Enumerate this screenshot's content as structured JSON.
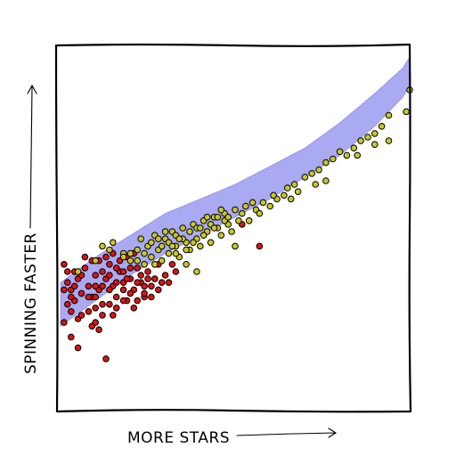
{
  "chart_data": {
    "type": "scatter",
    "style": "xkcd",
    "xlabel": "MORE STARS",
    "ylabel": "SPINNING FASTER",
    "xlim": [
      0,
      1
    ],
    "ylim": [
      0,
      1
    ],
    "ticks": "none",
    "grid": false,
    "legend": "none",
    "colors": {
      "red_series": "#d91414",
      "yellow_series": "#c8c628",
      "band": "#aaaaf2"
    },
    "band": {
      "x": [
        0.0,
        0.1,
        0.2,
        0.3,
        0.4,
        0.5,
        0.6,
        0.7,
        0.8,
        0.9,
        0.98,
        1.0
      ],
      "lower": [
        0.23,
        0.3,
        0.37,
        0.43,
        0.48,
        0.53,
        0.58,
        0.64,
        0.7,
        0.78,
        0.86,
        0.89
      ],
      "upper": [
        0.35,
        0.42,
        0.48,
        0.54,
        0.58,
        0.62,
        0.67,
        0.72,
        0.79,
        0.87,
        0.94,
        0.97
      ]
    },
    "series": [
      {
        "color": "#d91414",
        "points": [
          [
            0.01,
            0.4
          ],
          [
            0.02,
            0.35
          ],
          [
            0.03,
            0.33
          ],
          [
            0.02,
            0.29
          ],
          [
            0.04,
            0.38
          ],
          [
            0.05,
            0.36
          ],
          [
            0.06,
            0.32
          ],
          [
            0.04,
            0.3
          ],
          [
            0.07,
            0.39
          ],
          [
            0.08,
            0.34
          ],
          [
            0.09,
            0.31
          ],
          [
            0.1,
            0.37
          ],
          [
            0.11,
            0.33
          ],
          [
            0.12,
            0.29
          ],
          [
            0.13,
            0.36
          ],
          [
            0.14,
            0.4
          ],
          [
            0.15,
            0.34
          ],
          [
            0.16,
            0.31
          ],
          [
            0.17,
            0.38
          ],
          [
            0.18,
            0.35
          ],
          [
            0.19,
            0.3
          ],
          [
            0.2,
            0.36
          ],
          [
            0.21,
            0.33
          ],
          [
            0.22,
            0.39
          ],
          [
            0.23,
            0.35
          ],
          [
            0.24,
            0.31
          ],
          [
            0.25,
            0.38
          ],
          [
            0.26,
            0.34
          ],
          [
            0.27,
            0.36
          ],
          [
            0.28,
            0.4
          ],
          [
            0.29,
            0.35
          ],
          [
            0.3,
            0.37
          ],
          [
            0.03,
            0.27
          ],
          [
            0.05,
            0.25
          ],
          [
            0.01,
            0.24
          ],
          [
            0.08,
            0.27
          ],
          [
            0.1,
            0.28
          ],
          [
            0.06,
            0.26
          ],
          [
            0.12,
            0.26
          ],
          [
            0.14,
            0.29
          ],
          [
            0.16,
            0.28
          ],
          [
            0.18,
            0.3
          ],
          [
            0.2,
            0.32
          ],
          [
            0.22,
            0.3
          ],
          [
            0.24,
            0.34
          ],
          [
            0.07,
            0.42
          ],
          [
            0.09,
            0.41
          ],
          [
            0.11,
            0.41
          ],
          [
            0.13,
            0.42
          ],
          [
            0.15,
            0.43
          ],
          [
            0.17,
            0.41
          ],
          [
            0.19,
            0.42
          ],
          [
            0.21,
            0.43
          ],
          [
            0.1,
            0.34
          ],
          [
            0.12,
            0.34
          ],
          [
            0.14,
            0.33
          ],
          [
            0.16,
            0.35
          ],
          [
            0.18,
            0.33
          ],
          [
            0.2,
            0.39
          ],
          [
            0.22,
            0.35
          ],
          [
            0.02,
            0.38
          ],
          [
            0.04,
            0.34
          ],
          [
            0.06,
            0.37
          ],
          [
            0.08,
            0.31
          ],
          [
            0.1,
            0.31
          ],
          [
            0.12,
            0.38
          ],
          [
            0.14,
            0.37
          ],
          [
            0.16,
            0.39
          ],
          [
            0.18,
            0.38
          ],
          [
            0.26,
            0.31
          ],
          [
            0.28,
            0.33
          ],
          [
            0.31,
            0.35
          ],
          [
            0.33,
            0.38
          ],
          [
            0.03,
            0.2
          ],
          [
            0.09,
            0.23
          ],
          [
            0.11,
            0.22
          ],
          [
            0.1,
            0.24
          ],
          [
            0.05,
            0.17
          ],
          [
            0.13,
            0.14
          ],
          [
            0.15,
            0.26
          ],
          [
            0.21,
            0.28
          ],
          [
            0.24,
            0.32
          ],
          [
            0.03,
            0.31
          ],
          [
            0.01,
            0.33
          ],
          [
            0.32,
            0.4
          ],
          [
            0.52,
            0.51
          ],
          [
            0.57,
            0.45
          ],
          [
            0.23,
            0.37
          ],
          [
            0.25,
            0.36
          ],
          [
            0.19,
            0.36
          ]
        ]
      },
      {
        "color": "#c8c628",
        "points": [
          [
            0.05,
            0.38
          ],
          [
            0.12,
            0.45
          ],
          [
            0.15,
            0.46
          ],
          [
            0.18,
            0.43
          ],
          [
            0.2,
            0.41
          ],
          [
            0.22,
            0.44
          ],
          [
            0.23,
            0.47
          ],
          [
            0.24,
            0.4
          ],
          [
            0.25,
            0.45
          ],
          [
            0.26,
            0.42
          ],
          [
            0.27,
            0.48
          ],
          [
            0.28,
            0.44
          ],
          [
            0.29,
            0.41
          ],
          [
            0.3,
            0.47
          ],
          [
            0.31,
            0.43
          ],
          [
            0.32,
            0.49
          ],
          [
            0.33,
            0.45
          ],
          [
            0.34,
            0.42
          ],
          [
            0.35,
            0.5
          ],
          [
            0.36,
            0.46
          ],
          [
            0.37,
            0.44
          ],
          [
            0.38,
            0.51
          ],
          [
            0.39,
            0.47
          ],
          [
            0.4,
            0.45
          ],
          [
            0.41,
            0.52
          ],
          [
            0.42,
            0.49
          ],
          [
            0.43,
            0.46
          ],
          [
            0.44,
            0.53
          ],
          [
            0.45,
            0.5
          ],
          [
            0.46,
            0.48
          ],
          [
            0.47,
            0.54
          ],
          [
            0.48,
            0.51
          ],
          [
            0.49,
            0.49
          ],
          [
            0.5,
            0.55
          ],
          [
            0.51,
            0.52
          ],
          [
            0.52,
            0.54
          ],
          [
            0.53,
            0.56
          ],
          [
            0.54,
            0.52
          ],
          [
            0.55,
            0.57
          ],
          [
            0.56,
            0.55
          ],
          [
            0.58,
            0.57
          ],
          [
            0.6,
            0.56
          ],
          [
            0.62,
            0.58
          ],
          [
            0.64,
            0.59
          ],
          [
            0.65,
            0.61
          ],
          [
            0.67,
            0.62
          ],
          [
            0.68,
            0.6
          ],
          [
            0.7,
            0.64
          ],
          [
            0.72,
            0.65
          ],
          [
            0.74,
            0.66
          ],
          [
            0.76,
            0.68
          ],
          [
            0.78,
            0.69
          ],
          [
            0.8,
            0.71
          ],
          [
            0.82,
            0.7
          ],
          [
            0.84,
            0.72
          ],
          [
            0.86,
            0.74
          ],
          [
            0.88,
            0.75
          ],
          [
            0.9,
            0.76
          ],
          [
            0.92,
            0.78
          ],
          [
            0.94,
            0.81
          ],
          [
            0.99,
            0.82
          ],
          [
            1.0,
            0.88
          ],
          [
            0.33,
            0.48
          ],
          [
            0.35,
            0.47
          ],
          [
            0.37,
            0.49
          ],
          [
            0.39,
            0.5
          ],
          [
            0.41,
            0.48
          ],
          [
            0.43,
            0.51
          ],
          [
            0.45,
            0.53
          ],
          [
            0.47,
            0.52
          ],
          [
            0.29,
            0.45
          ],
          [
            0.31,
            0.46
          ],
          [
            0.33,
            0.43
          ],
          [
            0.36,
            0.44
          ],
          [
            0.38,
            0.46
          ],
          [
            0.4,
            0.5
          ],
          [
            0.42,
            0.53
          ],
          [
            0.44,
            0.5
          ],
          [
            0.46,
            0.55
          ],
          [
            0.48,
            0.53
          ],
          [
            0.3,
            0.49
          ],
          [
            0.34,
            0.47
          ],
          [
            0.26,
            0.46
          ],
          [
            0.24,
            0.43
          ],
          [
            0.22,
            0.41
          ],
          [
            0.2,
            0.43
          ],
          [
            0.18,
            0.42
          ],
          [
            0.28,
            0.47
          ],
          [
            0.32,
            0.45
          ],
          [
            0.1,
            0.41
          ],
          [
            0.14,
            0.44
          ],
          [
            0.27,
            0.4
          ],
          [
            0.36,
            0.4
          ],
          [
            0.39,
            0.38
          ],
          [
            0.5,
            0.45
          ],
          [
            0.57,
            0.54
          ],
          [
            0.61,
            0.59
          ],
          [
            0.66,
            0.58
          ],
          [
            0.73,
            0.62
          ],
          [
            0.76,
            0.63
          ],
          [
            0.85,
            0.7
          ],
          [
            0.9,
            0.73
          ],
          [
            0.94,
            0.74
          ]
        ]
      }
    ]
  }
}
